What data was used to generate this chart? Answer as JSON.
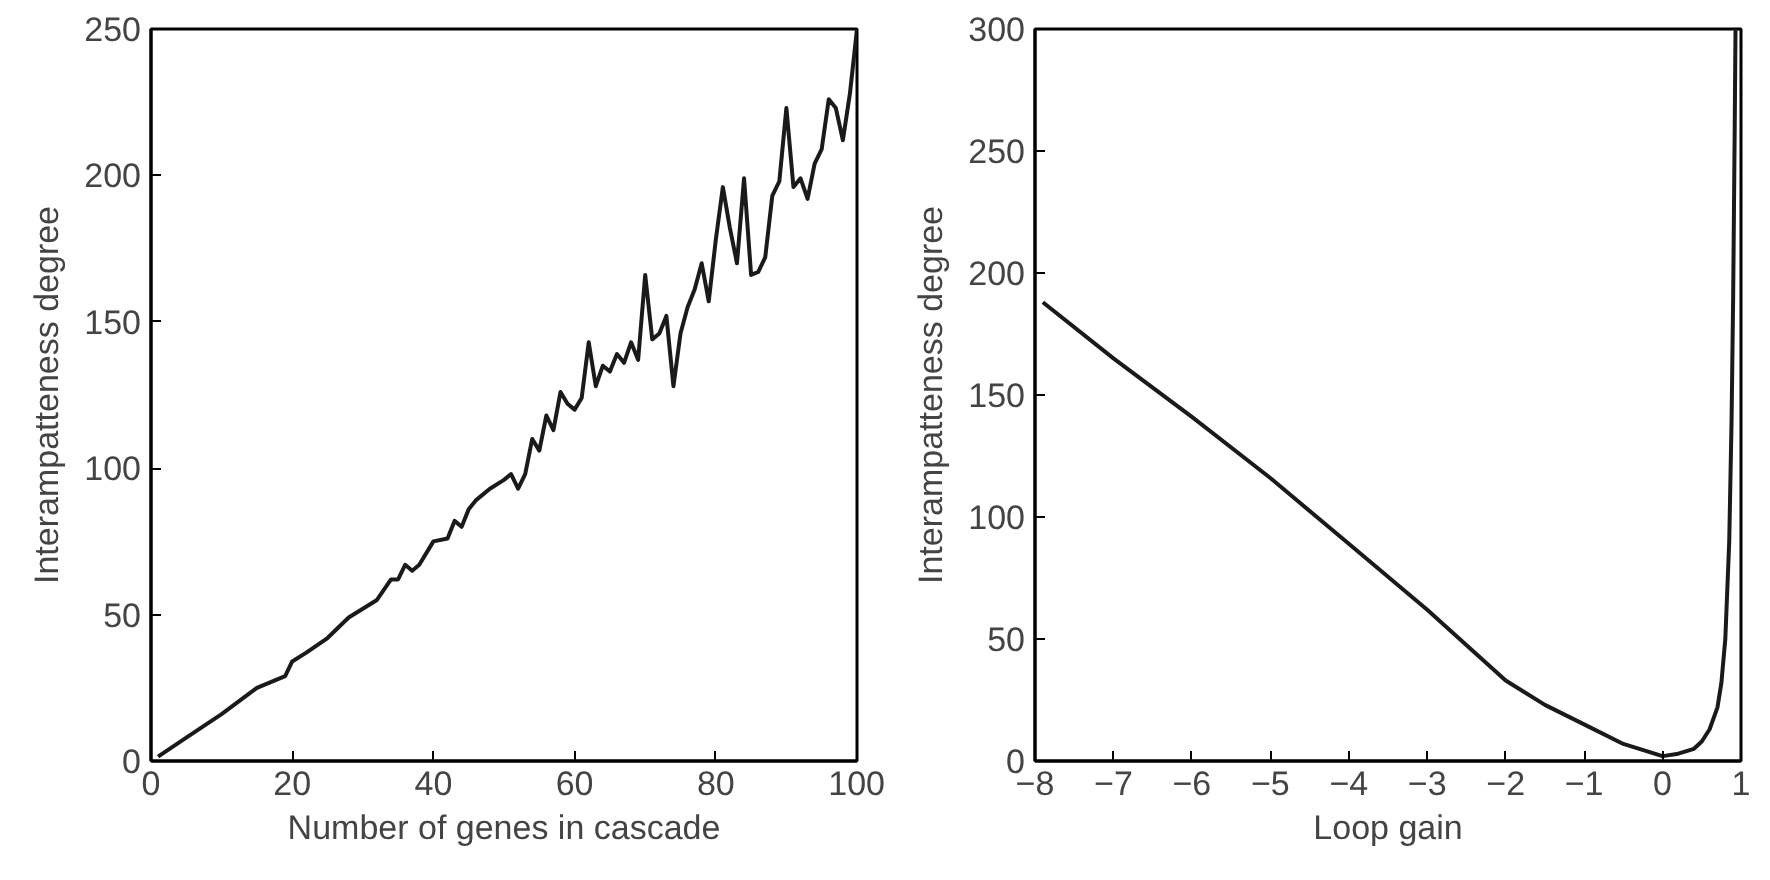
{
  "chart_data": [
    {
      "type": "line",
      "xlabel": "Number of genes in cascade",
      "ylabel": "Interampatteness degree",
      "xlim": [
        0,
        100
      ],
      "ylim": [
        0,
        250
      ],
      "xticks": [
        0,
        20,
        40,
        60,
        80,
        100
      ],
      "yticks": [
        0,
        50,
        100,
        150,
        200,
        250
      ],
      "marker": "none",
      "line_style": "solid",
      "series": [
        {
          "color": "#1a1a1a",
          "x": [
            1,
            5,
            10,
            15,
            19,
            20,
            22,
            25,
            28,
            30,
            32,
            34,
            35,
            36,
            37,
            38,
            40,
            42,
            43,
            44,
            45,
            46,
            48,
            50,
            51,
            52,
            53,
            54,
            55,
            56,
            57,
            58,
            59,
            60,
            61,
            62,
            63,
            64,
            65,
            66,
            67,
            68,
            69,
            70,
            71,
            72,
            73,
            74,
            75,
            76,
            77,
            78,
            79,
            80,
            81,
            82,
            83,
            84,
            85,
            86,
            87,
            88,
            89,
            90,
            91,
            92,
            93,
            94,
            95,
            96,
            97,
            98,
            99,
            100
          ],
          "values": [
            1.5,
            8,
            16,
            25,
            29,
            34,
            37,
            42,
            49,
            52,
            55,
            62,
            62,
            67,
            65,
            67,
            75,
            76,
            82,
            80,
            86,
            89,
            93,
            96,
            98,
            93,
            98,
            110,
            106,
            118,
            113,
            126,
            122,
            120,
            124,
            143,
            128,
            135,
            133,
            139,
            136,
            143,
            137,
            166,
            144,
            146,
            152,
            128,
            146,
            155,
            161,
            170,
            157,
            178,
            196,
            182,
            170,
            199,
            166,
            167,
            172,
            193,
            198,
            223,
            196,
            199,
            192,
            204,
            209,
            226,
            223,
            212,
            228,
            250
          ]
        }
      ]
    },
    {
      "type": "line",
      "xlabel": "Loop gain",
      "ylabel": "Interampatteness degree",
      "xlim": [
        -8,
        1
      ],
      "ylim": [
        0,
        300
      ],
      "xticks": [
        {
          "value": -8,
          "label": "−8"
        },
        {
          "value": -7,
          "label": "−7"
        },
        {
          "value": -6,
          "label": "−6"
        },
        {
          "value": -5,
          "label": "−5"
        },
        {
          "value": -4,
          "label": "−4"
        },
        {
          "value": -3,
          "label": "−3"
        },
        {
          "value": -2,
          "label": "−2"
        },
        {
          "value": -1,
          "label": "−1"
        },
        0,
        1
      ],
      "yticks": [
        0,
        50,
        100,
        150,
        200,
        250,
        300
      ],
      "marker": "none",
      "line_style": "solid",
      "series": [
        {
          "color": "#1a1a1a",
          "x": [
            -7.9,
            -7,
            -6,
            -5,
            -4,
            -3,
            -2,
            -1.5,
            -1,
            -0.5,
            0,
            0.2,
            0.4,
            0.5,
            0.6,
            0.7,
            0.75,
            0.8,
            0.85,
            0.88,
            0.9,
            0.92,
            0.93
          ],
          "values": [
            188,
            165,
            141,
            116,
            89,
            62,
            33,
            23,
            15,
            7,
            2,
            3,
            5,
            8,
            13,
            22,
            32,
            50,
            90,
            140,
            190,
            260,
            300
          ]
        }
      ]
    }
  ]
}
